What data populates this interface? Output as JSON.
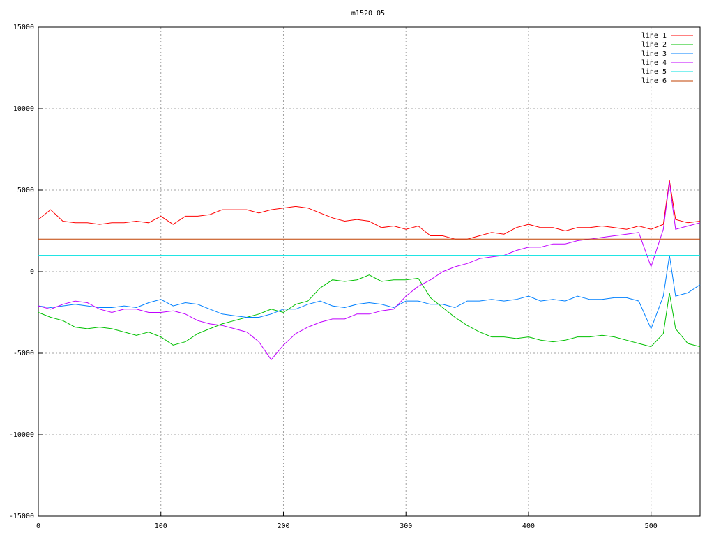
{
  "chart_data": {
    "type": "line",
    "title": "m1520_05",
    "x": [
      0,
      10,
      20,
      30,
      40,
      50,
      60,
      70,
      80,
      90,
      100,
      110,
      120,
      130,
      140,
      150,
      160,
      170,
      180,
      190,
      200,
      210,
      220,
      230,
      240,
      250,
      260,
      270,
      280,
      290,
      300,
      310,
      320,
      330,
      340,
      350,
      360,
      370,
      380,
      390,
      400,
      410,
      420,
      430,
      440,
      450,
      460,
      470,
      480,
      490,
      500,
      510,
      515,
      520,
      530,
      540
    ],
    "series": [
      {
        "name": "line 1",
        "color": "#ff0000",
        "values": [
          3200,
          3800,
          3100,
          3000,
          3000,
          2900,
          3000,
          3000,
          3100,
          3000,
          3400,
          2900,
          3400,
          3400,
          3500,
          3800,
          3800,
          3800,
          3600,
          3800,
          3900,
          4000,
          3900,
          3600,
          3300,
          3100,
          3200,
          3100,
          2700,
          2800,
          2600,
          2800,
          2200,
          2200,
          2000,
          2000,
          2200,
          2400,
          2300,
          2700,
          2900,
          2700,
          2700,
          2500,
          2700,
          2700,
          2800,
          2700,
          2600,
          2800,
          2600,
          2900,
          5600,
          3200,
          3000,
          3100
        ]
      },
      {
        "name": "line 2",
        "color": "#00c000",
        "values": [
          -2500,
          -2800,
          -3000,
          -3400,
          -3500,
          -3400,
          -3500,
          -3700,
          -3900,
          -3700,
          -4000,
          -4500,
          -4300,
          -3800,
          -3500,
          -3200,
          -3000,
          -2800,
          -2600,
          -2300,
          -2500,
          -2000,
          -1800,
          -1000,
          -500,
          -600,
          -500,
          -200,
          -600,
          -500,
          -500,
          -400,
          -1600,
          -2200,
          -2800,
          -3300,
          -3700,
          -4000,
          -4000,
          -4100,
          -4000,
          -4200,
          -4300,
          -4200,
          -4000,
          -4000,
          -3900,
          -4000,
          -4200,
          -4400,
          -4600,
          -3800,
          -1300,
          -3500,
          -4400,
          -4600
        ]
      },
      {
        "name": "line 3",
        "color": "#0080ff",
        "values": [
          -2100,
          -2200,
          -2100,
          -2000,
          -2100,
          -2200,
          -2200,
          -2100,
          -2200,
          -1900,
          -1700,
          -2100,
          -1900,
          -2000,
          -2300,
          -2600,
          -2700,
          -2800,
          -2800,
          -2600,
          -2300,
          -2300,
          -2000,
          -1800,
          -2100,
          -2200,
          -2000,
          -1900,
          -2000,
          -2200,
          -1800,
          -1800,
          -2000,
          -2000,
          -2200,
          -1800,
          -1800,
          -1700,
          -1800,
          -1700,
          -1500,
          -1800,
          -1700,
          -1800,
          -1500,
          -1700,
          -1700,
          -1600,
          -1600,
          -1800,
          -3500,
          -1500,
          1000,
          -1500,
          -1300,
          -800
        ]
      },
      {
        "name": "line 4",
        "color": "#c000ff",
        "values": [
          -2100,
          -2300,
          -2000,
          -1800,
          -1900,
          -2300,
          -2500,
          -2300,
          -2300,
          -2500,
          -2500,
          -2400,
          -2600,
          -3000,
          -3200,
          -3300,
          -3500,
          -3700,
          -4300,
          -5400,
          -4500,
          -3800,
          -3400,
          -3100,
          -2900,
          -2900,
          -2600,
          -2600,
          -2400,
          -2300,
          -1500,
          -900,
          -500,
          0,
          300,
          500,
          800,
          900,
          1000,
          1300,
          1500,
          1500,
          1700,
          1700,
          1900,
          2000,
          2100,
          2200,
          2300,
          2400,
          300,
          2600,
          5500,
          2600,
          2800,
          3000
        ]
      },
      {
        "name": "line 5",
        "color": "#00e0e0",
        "values": [
          1000,
          1000,
          1000,
          1000,
          1000,
          1000,
          1000,
          1000,
          1000,
          1000,
          1000,
          1000,
          1000,
          1000,
          1000,
          1000,
          1000,
          1000,
          1000,
          1000,
          1000,
          1000,
          1000,
          1000,
          1000,
          1000,
          1000,
          1000,
          1000,
          1000,
          1000,
          1000,
          1000,
          1000,
          1000,
          1000,
          1000,
          1000,
          1000,
          1000,
          1000,
          1000,
          1000,
          1000,
          1000,
          1000,
          1000,
          1000,
          1000,
          1000,
          1000,
          1000,
          1000,
          1000,
          1000,
          1000
        ]
      },
      {
        "name": "line 6",
        "color": "#c04000",
        "values": [
          2000,
          2000,
          2000,
          2000,
          2000,
          2000,
          2000,
          2000,
          2000,
          2000,
          2000,
          2000,
          2000,
          2000,
          2000,
          2000,
          2000,
          2000,
          2000,
          2000,
          2000,
          2000,
          2000,
          2000,
          2000,
          2000,
          2000,
          2000,
          2000,
          2000,
          2000,
          2000,
          2000,
          2000,
          2000,
          2000,
          2000,
          2000,
          2000,
          2000,
          2000,
          2000,
          2000,
          2000,
          2000,
          2000,
          2000,
          2000,
          2000,
          2000,
          2000,
          2000,
          2000,
          2000,
          2000,
          2000
        ]
      }
    ],
    "xlim": [
      0,
      540
    ],
    "xticks": [
      0,
      100,
      200,
      300,
      400,
      500
    ],
    "ylim": [
      -15000,
      15000
    ],
    "yticks": [
      -15000,
      -10000,
      -5000,
      0,
      5000,
      10000,
      15000
    ],
    "grid": true,
    "legend": "top-right"
  }
}
